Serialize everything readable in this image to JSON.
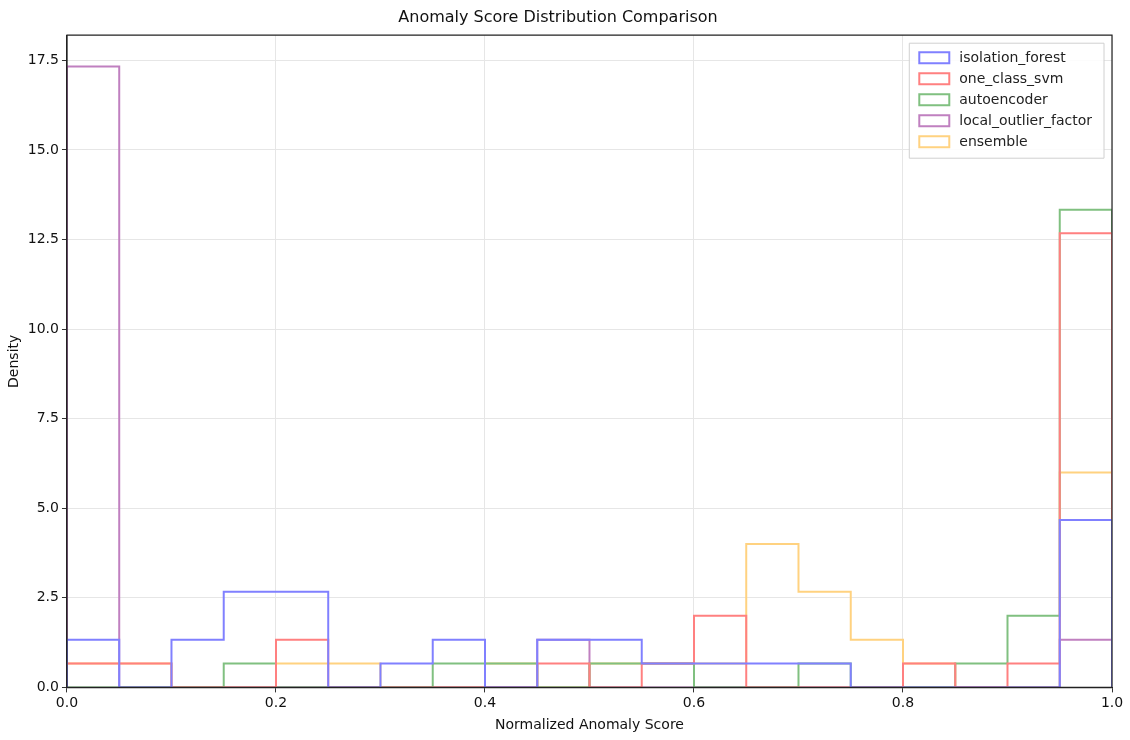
{
  "chart_data": {
    "type": "histogram",
    "title": "Anomaly Score Distribution Comparison",
    "xlabel": "Normalized Anomaly Score",
    "ylabel": "Density",
    "bins": [
      0,
      0.05,
      0.1,
      0.15,
      0.2,
      0.25,
      0.3,
      0.35,
      0.4,
      0.45,
      0.5,
      0.55,
      0.6,
      0.65,
      0.7,
      0.75,
      0.8,
      0.85,
      0.9,
      0.95,
      1.0
    ],
    "series": [
      {
        "name": "isolation_forest",
        "color": "#8080ff",
        "values": [
          1.33,
          0,
          1.33,
          2.67,
          2.67,
          0,
          0.67,
          1.33,
          0,
          1.33,
          1.33,
          0.67,
          0.67,
          0.67,
          0.67,
          0,
          0,
          0,
          0,
          4.67
        ]
      },
      {
        "name": "one_class_svm",
        "color": "#ff8080",
        "values": [
          0.67,
          0.67,
          0,
          0,
          1.33,
          0,
          0,
          0,
          0,
          0.67,
          0,
          0.67,
          2,
          0,
          0,
          0,
          0.67,
          0,
          0.67,
          12.67
        ]
      },
      {
        "name": "autoencoder",
        "color": "#80c080",
        "values": [
          0,
          0,
          0,
          0.67,
          0,
          0,
          0,
          0.67,
          0.67,
          0,
          0.67,
          0.67,
          0,
          0,
          0.67,
          0,
          0,
          0.67,
          2,
          13.33
        ]
      },
      {
        "name": "local_outlier_factor",
        "color": "#c080c0",
        "values": [
          17.33,
          0,
          0,
          0,
          0,
          0,
          0,
          0,
          0,
          1.33,
          0,
          0,
          0,
          0,
          0,
          0,
          0,
          0,
          0,
          1.33
        ]
      },
      {
        "name": "ensemble",
        "color": "#ffd280",
        "values": [
          0.67,
          0.67,
          0,
          0,
          0.67,
          0.67,
          0,
          0,
          0.67,
          0,
          0.67,
          0.67,
          0.67,
          4,
          2.67,
          1.33,
          0.67,
          0,
          0,
          6
        ]
      }
    ],
    "xlim": [
      0,
      1
    ],
    "xticks": [
      {
        "value": 0,
        "label": "0.0"
      },
      {
        "value": 0.2,
        "label": "0.2"
      },
      {
        "value": 0.4,
        "label": "0.4"
      },
      {
        "value": 0.6,
        "label": "0.6"
      },
      {
        "value": 0.8,
        "label": "0.8"
      },
      {
        "value": 1,
        "label": "1.0"
      }
    ],
    "ylim": [
      0,
      18.2
    ],
    "yticks": [
      {
        "value": 0,
        "label": "0.0"
      },
      2.5,
      {
        "value": 5,
        "label": "5.0"
      },
      7.5,
      {
        "value": 10,
        "label": "10.0"
      },
      12.5,
      {
        "value": 15,
        "label": "15.0"
      },
      17.5
    ],
    "grid": true,
    "legend": "top right"
  }
}
